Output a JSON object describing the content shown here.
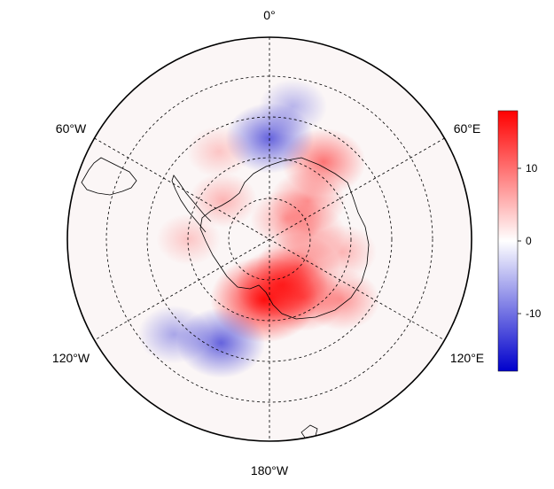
{
  "map": {
    "projection": "south-polar-stereographic",
    "graticule": {
      "meridian_labels": [
        "0°",
        "60°E",
        "120°E",
        "180°W",
        "120°W",
        "60°W"
      ]
    },
    "field": {
      "colormap": [
        "#0000cc",
        "#ffffff",
        "#ff0000"
      ],
      "anomaly_regions": [
        {
          "lon": 185,
          "lat": -72,
          "value": 14
        },
        {
          "lon": 165,
          "lat": -76,
          "value": 10
        },
        {
          "lon": 150,
          "lat": -70,
          "value": 8
        },
        {
          "lon": 130,
          "lat": -62,
          "value": 6
        },
        {
          "lon": 135,
          "lat": -78,
          "value": 8
        },
        {
          "lon": 100,
          "lat": -68,
          "value": 4
        },
        {
          "lon": 45,
          "lat": -74,
          "value": 6
        },
        {
          "lon": 35,
          "lat": -62,
          "value": 8
        },
        {
          "lon": 40,
          "lat": -82,
          "value": 5
        },
        {
          "lon": 80,
          "lat": -78,
          "value": 5
        },
        {
          "lon": 0,
          "lat": -60,
          "value": -9
        },
        {
          "lon": 10,
          "lat": -50,
          "value": -4
        },
        {
          "lon": 205,
          "lat": -56,
          "value": -9
        },
        {
          "lon": 225,
          "lat": -50,
          "value": -5
        },
        {
          "lon": 270,
          "lat": -66,
          "value": 3
        },
        {
          "lon": 310,
          "lat": -72,
          "value": 4
        },
        {
          "lon": 330,
          "lat": -60,
          "value": 3
        }
      ]
    }
  },
  "colorbar": {
    "min": -18,
    "max": 18,
    "ticks": [
      "10",
      "0",
      "-10"
    ]
  }
}
